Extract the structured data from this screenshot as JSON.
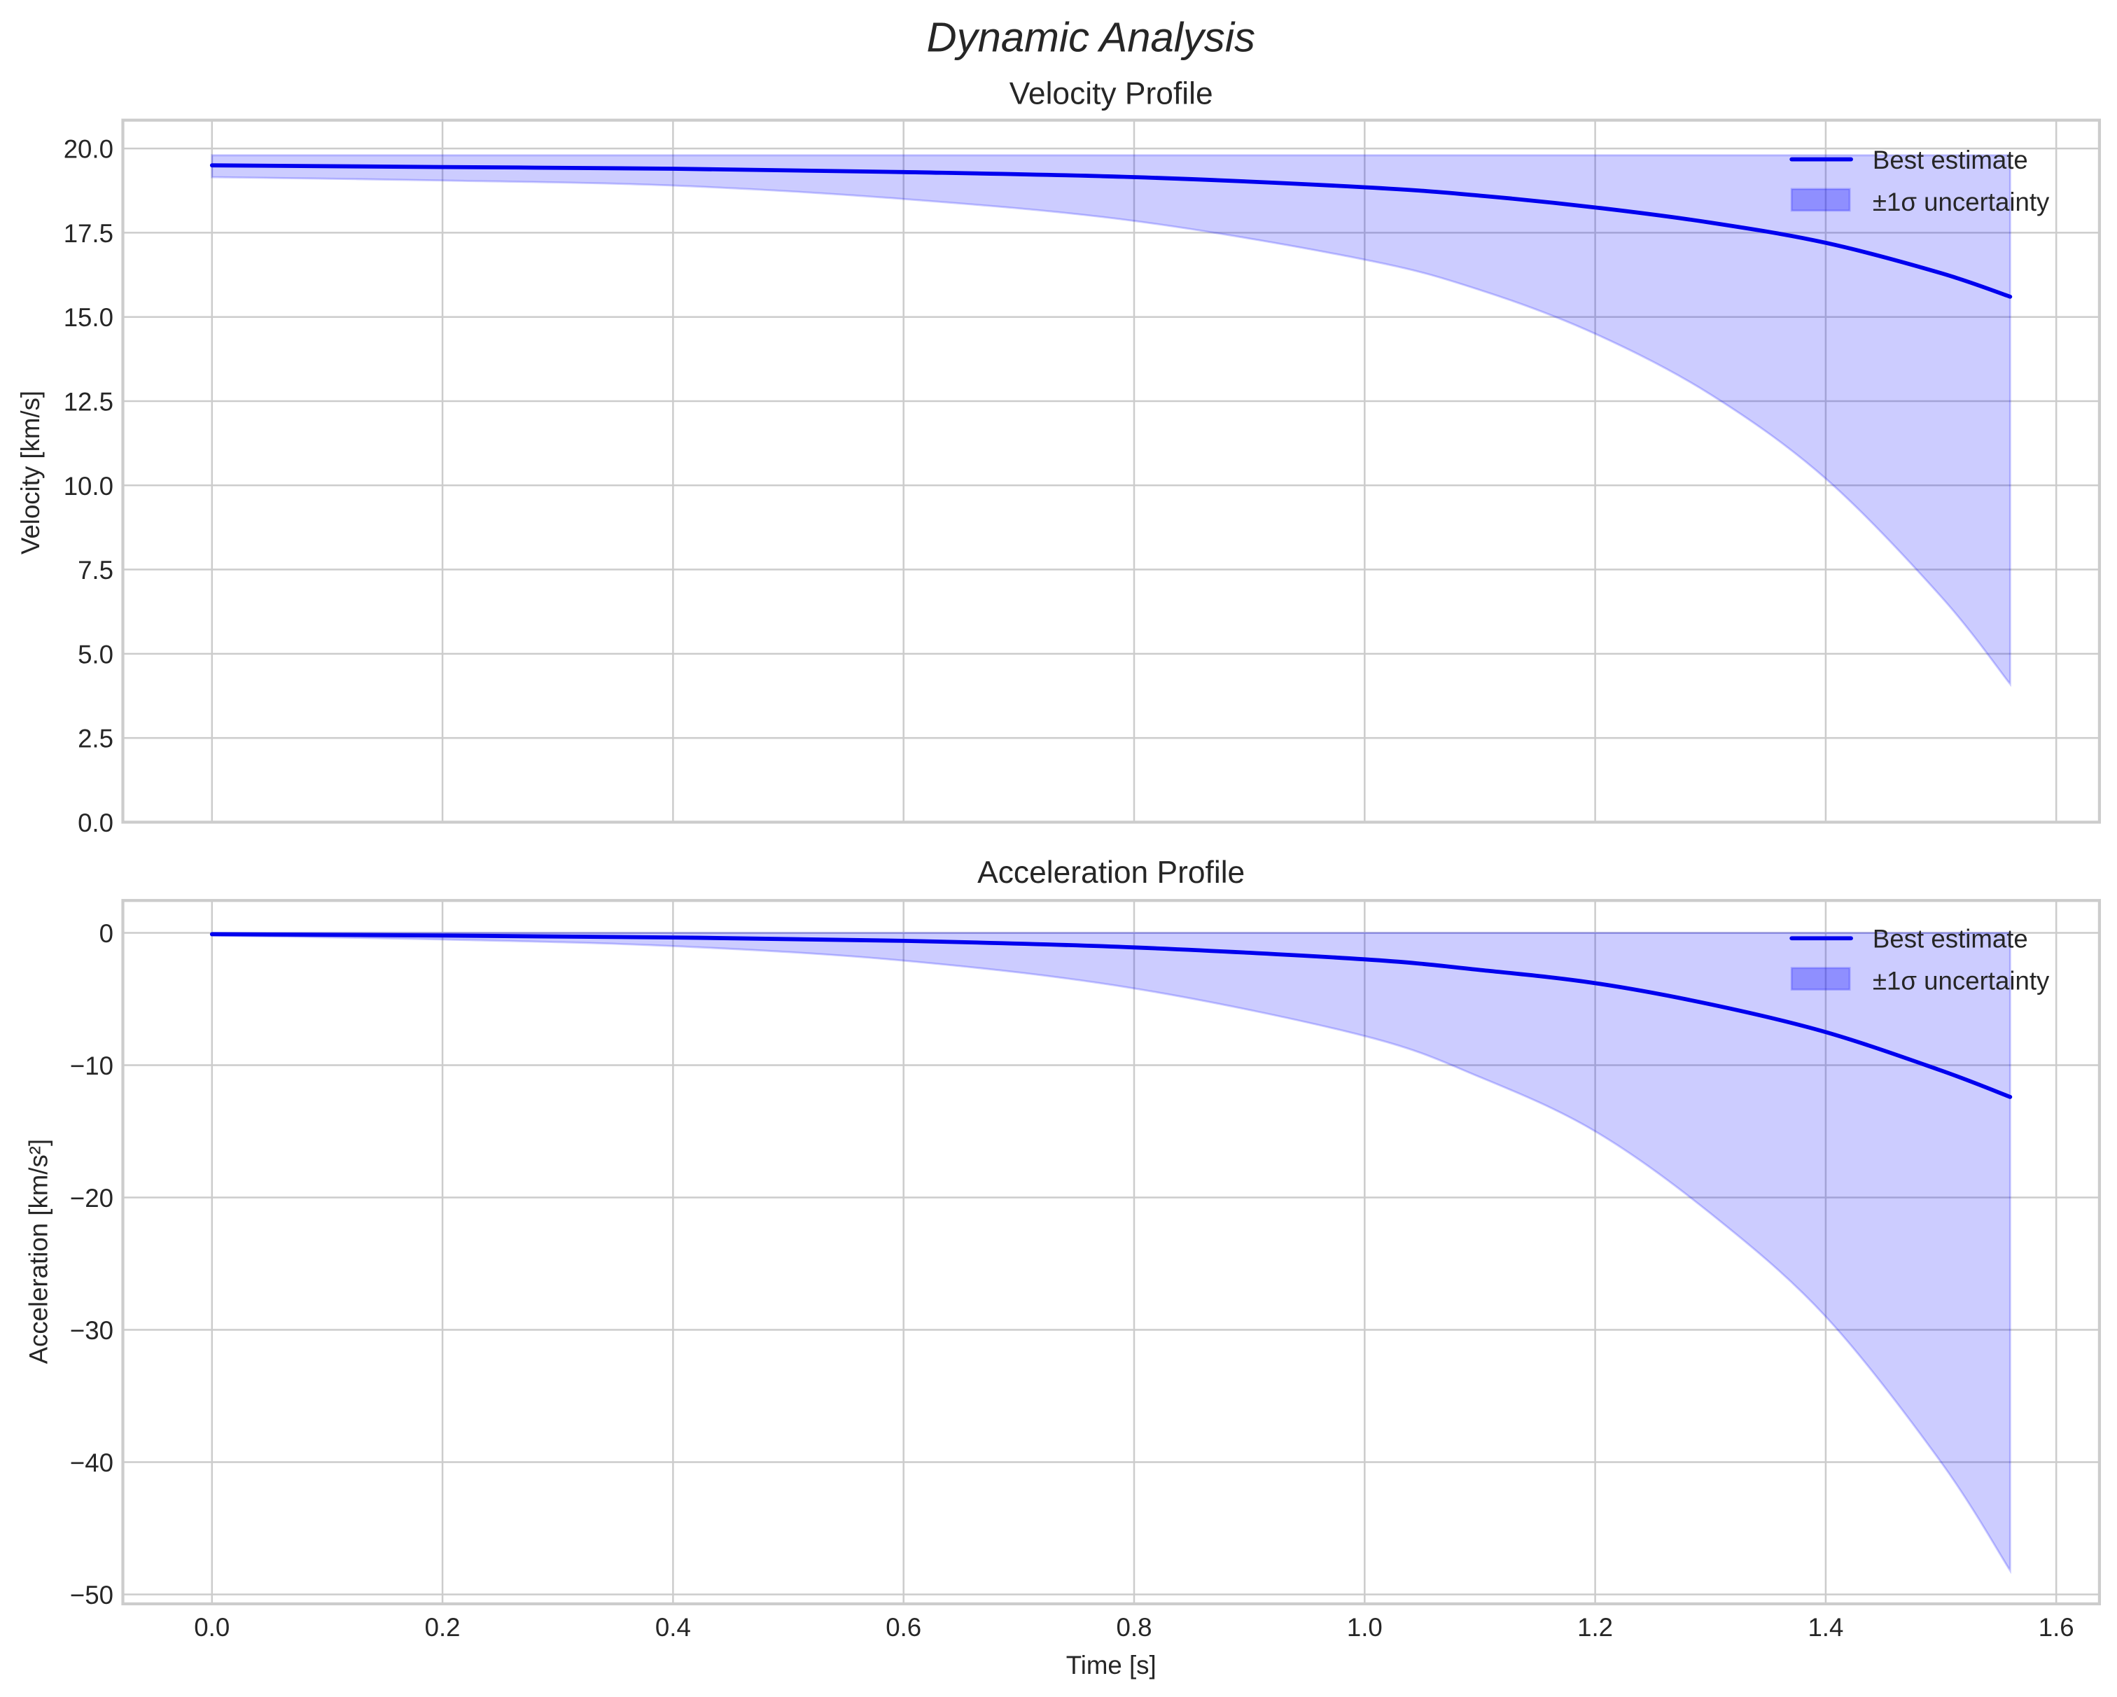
{
  "figure": {
    "suptitle": "Dynamic Analysis",
    "xlabel": "Time [s]",
    "colors": {
      "line": "#0000ee",
      "band": "#0000ff",
      "band_alpha": 0.2,
      "grid": "#cccccc",
      "text": "#262626"
    }
  },
  "panels": [
    {
      "title": "Velocity Profile",
      "ylabel": "Velocity [km/s]",
      "yticks": [
        "0.0",
        "2.5",
        "5.0",
        "7.5",
        "10.0",
        "12.5",
        "15.0",
        "17.5",
        "20.0"
      ],
      "legend": [
        "Best estimate",
        "±1σ uncertainty"
      ]
    },
    {
      "title": "Acceleration Profile",
      "ylabel": "Acceleration [km/s²]",
      "yticks": [
        "0",
        "−10",
        "−20",
        "−30",
        "−40",
        "−50"
      ],
      "legend": [
        "Best estimate",
        "±1σ uncertainty"
      ]
    }
  ],
  "xticks": [
    "0.0",
    "0.2",
    "0.4",
    "0.6",
    "0.8",
    "1.0",
    "1.2",
    "1.4",
    "1.6"
  ],
  "chart_data": [
    {
      "type": "line",
      "title": "Velocity Profile",
      "suptitle": "Dynamic Analysis",
      "xlabel": "Time [s]",
      "ylabel": "Velocity [km/s]",
      "xlim": [
        -0.08,
        1.64
      ],
      "ylim": [
        0,
        20.8
      ],
      "grid": true,
      "legend_position": "upper right",
      "x": [
        0.0,
        0.2,
        0.4,
        0.6,
        0.8,
        1.0,
        1.1,
        1.2,
        1.3,
        1.4,
        1.5,
        1.56
      ],
      "series": [
        {
          "name": "Best estimate",
          "values": [
            19.5,
            19.45,
            19.4,
            19.3,
            19.15,
            18.85,
            18.6,
            18.25,
            17.8,
            17.2,
            16.3,
            15.6
          ]
        },
        {
          "name": "±1σ uncertainty (lower)",
          "values": [
            19.15,
            19.05,
            18.9,
            18.5,
            17.85,
            16.7,
            15.8,
            14.5,
            12.7,
            10.2,
            6.7,
            4.1
          ]
        },
        {
          "name": "±1σ uncertainty (upper)",
          "values": [
            19.8,
            19.8,
            19.8,
            19.8,
            19.8,
            19.8,
            19.8,
            19.8,
            19.8,
            19.8,
            19.8,
            19.8
          ]
        }
      ]
    },
    {
      "type": "line",
      "title": "Acceleration Profile",
      "xlabel": "Time [s]",
      "ylabel": "Acceleration [km/s²]",
      "xlim": [
        -0.08,
        1.64
      ],
      "ylim": [
        -50.7,
        2.4
      ],
      "grid": true,
      "legend_position": "upper right",
      "x": [
        0.0,
        0.2,
        0.4,
        0.6,
        0.8,
        1.0,
        1.1,
        1.2,
        1.3,
        1.4,
        1.5,
        1.56
      ],
      "series": [
        {
          "name": "Best estimate",
          "values": [
            -0.1,
            -0.2,
            -0.35,
            -0.6,
            -1.1,
            -2.0,
            -2.8,
            -3.8,
            -5.4,
            -7.5,
            -10.4,
            -12.4
          ]
        },
        {
          "name": "±1σ uncertainty (lower)",
          "values": [
            -0.2,
            -0.5,
            -1.0,
            -2.1,
            -4.2,
            -7.8,
            -10.9,
            -15.0,
            -21.2,
            -29.0,
            -40.0,
            -48.2
          ]
        },
        {
          "name": "±1σ uncertainty (upper)",
          "values": [
            0.0,
            0.0,
            0.0,
            0.0,
            0.0,
            0.0,
            0.0,
            0.0,
            0.0,
            0.0,
            0.0,
            0.0
          ]
        }
      ]
    }
  ]
}
